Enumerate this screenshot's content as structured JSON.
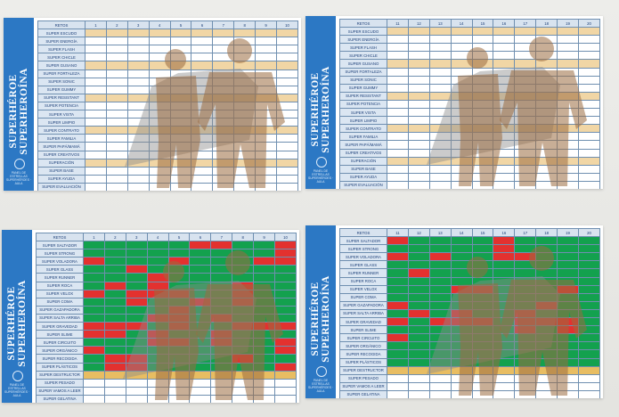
{
  "sidebar": {
    "title_line1": "SUPERHÉROE",
    "title_line2": "SUPERHEROÍNA",
    "school": "PANEL DE ESTRELLAS SUPERHÉROES · AULA"
  },
  "sheets": [
    {
      "id": "top-left",
      "header": "RETOS",
      "columns": [
        "1",
        "2",
        "3",
        "4",
        "5",
        "6",
        "7",
        "8",
        "9",
        "10"
      ],
      "rows": [
        "SUPER ESCUDO",
        "SUPER ENERGÍA",
        "SUPER FLASH",
        "SUPER CHICLE",
        "SUPER GUSANO",
        "SUPER FORTALEZA",
        "SUPER SONIC",
        "SUPER GUMMY",
        "SUPER RESISTANT",
        "SUPER POTENCIA",
        "SUPER VISTA",
        "SUPER LIMPIO",
        "SUPER CONTRATO",
        "SUPER FAMILIA",
        "SUPER PAPÁ/MAMÁ",
        "SUPER CREATIVOS",
        "SUPERACIÓN",
        "SUPER BASE",
        "SUPER AYUDA",
        "SUPER EVALUACIÓN"
      ]
    },
    {
      "id": "top-right",
      "header": "RETOS",
      "columns": [
        "11",
        "12",
        "13",
        "14",
        "15",
        "16",
        "17",
        "18",
        "19",
        "20"
      ],
      "rows": [
        "SUPER ESCUDO",
        "SUPER ENERGÍA",
        "SUPER FLASH",
        "SUPER CHICLE",
        "SUPER GUSANO",
        "SUPER FORTALEZA",
        "SUPER SONIC",
        "SUPER GUMMY",
        "SUPER RESISTANT",
        "SUPER POTENCIA",
        "SUPER VISTA",
        "SUPER LIMPIO",
        "SUPER CONTRATO",
        "SUPER FAMILIA",
        "SUPER PAPÁ/MAMÁ",
        "SUPER CREATIVOS",
        "SUPERACIÓN",
        "SUPER BASE",
        "SUPER AYUDA",
        "SUPER EVALUACIÓN"
      ]
    },
    {
      "id": "bottom-left",
      "header": "RETOS",
      "columns": [
        "1",
        "2",
        "3",
        "4",
        "5",
        "6",
        "7",
        "8",
        "9",
        "10"
      ],
      "rows": [
        "SUPER SALTADOR",
        "SUPER STRONG",
        "SUPER VOLADORA",
        "SUPER GLASS",
        "SUPER RUNNER",
        "SUPER ROCA",
        "SUPER VELOX",
        "SUPER COMA",
        "SUPER GAZAPADORA",
        "SUPER SALTA ARRIBA",
        "SUPER GRAVEDAD",
        "SUPER SLIME",
        "SUPER CIRCUITO",
        "SUPER ORGÁNICO",
        "SUPER RECOGIDA",
        "SUPER PLÁSTICOS",
        "SUPER DESTRUCTOR",
        "SUPER PESADO",
        "SUPER VAMOS A LEER",
        "SUPER GELATINA"
      ],
      "marks": [
        "GGGGGRRGGR",
        "GGGGGGGGGR",
        "RGGGRGGGRR",
        "GGRGGGGGGG",
        "GGGRGGGGGG",
        "GRGRGGGRGG",
        "RGRRRGGRGG",
        "GGRGGRGRGG",
        "GGGGRGGGGG",
        "GGGRRGRGGG",
        "RRRGRGGRRR",
        "RRGRGGRGGG",
        "GGGRRGRGGR",
        "RGGGGGGGGR",
        "GRRGGGGRGG",
        "GRRGGGGGGR",
        "YYYYYYYYYY",
        "",
        "",
        ""
      ]
    },
    {
      "id": "bottom-right",
      "header": "RETOS",
      "columns": [
        "11",
        "12",
        "13",
        "14",
        "15",
        "16",
        "17",
        "18",
        "19",
        "20"
      ],
      "rows": [
        "SUPER SALTADOR",
        "SUPER STRONG",
        "SUPER VOLADORA",
        "SUPER GLASS",
        "SUPER RUNNER",
        "SUPER ROCA",
        "SUPER VELOX",
        "SUPER COMA",
        "SUPER GAZAPADORA",
        "SUPER SALTA ARRIBA",
        "SUPER GRAVEDAD",
        "SUPER SLIME",
        "SUPER CIRCUITO",
        "SUPER ORGÁNICO",
        "SUPER RECOGIDA",
        "SUPER PLÁSTICOS",
        "SUPER DESTRUCTOR",
        "SUPER PESADO",
        "SUPER VAMOS A LEER",
        "SUPER GELATINA"
      ],
      "marks": [
        "RGGGGRGGGG",
        "GGGGGRGGGG",
        "RGRGGRRGGG",
        "GGGGGGGGGG",
        "GRGGGGGGGG",
        "GGGGGGGGGG",
        "GGGRRGGGRG",
        "GGGGGGGGGG",
        "RGGGGGGRGG",
        "GRGRGGRGGG",
        "RGRRRGRRRG",
        "GGGGGGRGRG",
        "RGGGGGGGGG",
        "GGGGGGGGGG",
        "GGGGGGGGGG",
        "GGGGGGGGGG",
        "YYYYYYYYYY",
        "",
        "",
        ""
      ]
    }
  ],
  "colors": {
    "sidebar": "#2c78c4",
    "done": "#13a14e",
    "failed": "#e3312f",
    "band": "#e8bd62"
  }
}
